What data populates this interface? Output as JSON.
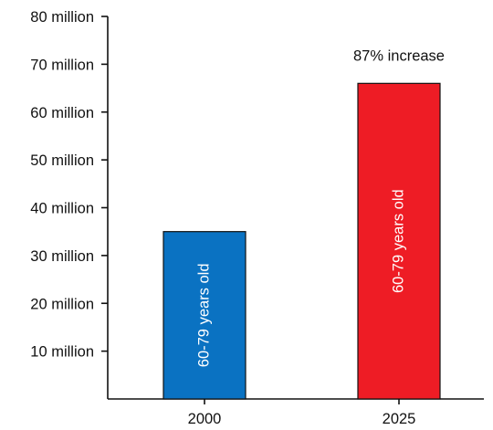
{
  "chart_data": {
    "type": "bar",
    "categories": [
      "2000",
      "2025"
    ],
    "values": [
      35,
      66
    ],
    "bar_labels": [
      "60-79 years old",
      "60-79 years old"
    ],
    "colors": [
      "#0a72c2",
      "#ee1c25"
    ],
    "annotation": "87% increase",
    "y_ticks": [
      {
        "value": 10,
        "label": "10 million"
      },
      {
        "value": 20,
        "label": "20 million"
      },
      {
        "value": 30,
        "label": "30 million"
      },
      {
        "value": 40,
        "label": "40 million"
      },
      {
        "value": 50,
        "label": "50 million"
      },
      {
        "value": 60,
        "label": "60 million"
      },
      {
        "value": 70,
        "label": "70 million"
      },
      {
        "value": 80,
        "label": "80 million"
      }
    ],
    "ylim": [
      0,
      80
    ],
    "title": "",
    "xlabel": "",
    "ylabel": "",
    "grid": false,
    "legend": "none"
  }
}
